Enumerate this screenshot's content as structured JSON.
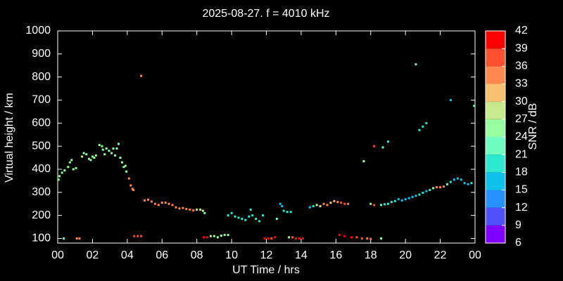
{
  "chart_data": {
    "type": "scatter",
    "title": "2025-08-27. f = 4010 kHz",
    "x_label": "UT Time / hrs",
    "y_label": "Virtual height / km",
    "xlim": [
      0,
      24
    ],
    "xticks": [
      {
        "value": 0,
        "label": "00"
      },
      {
        "value": 2,
        "label": "02"
      },
      {
        "value": 4,
        "label": "04"
      },
      {
        "value": 6,
        "label": "06"
      },
      {
        "value": 8,
        "label": "08"
      },
      10,
      12,
      14,
      16,
      18,
      20,
      22,
      {
        "value": 24,
        "label": "00"
      }
    ],
    "ylim": [
      80,
      1000
    ],
    "yticks": [
      100,
      200,
      300,
      400,
      500,
      600,
      700,
      800,
      900,
      1000
    ],
    "x": [
      0.05,
      0.1,
      0.25,
      0.4,
      0.6,
      0.7,
      0.8,
      0.9,
      1.05,
      0.35,
      1.1,
      1.25,
      1.4,
      1.5,
      1.65,
      1.8,
      1.9,
      2.0,
      2.1,
      2.2,
      2.4,
      2.55,
      2.6,
      2.7,
      2.8,
      2.95,
      3.1,
      3.2,
      3.3,
      3.4,
      3.5,
      3.6,
      3.7,
      3.8,
      3.9,
      3.95,
      4.1,
      4.2,
      4.3,
      4.35,
      4.4,
      4.6,
      4.8,
      4.8,
      5.0,
      5.2,
      5.4,
      5.6,
      5.8,
      6.0,
      6.2,
      6.4,
      6.6,
      6.8,
      7.0,
      7.2,
      7.4,
      7.6,
      7.8,
      8.0,
      8.2,
      8.35,
      8.45,
      8.4,
      8.6,
      8.8,
      9.0,
      9.2,
      9.4,
      9.6,
      9.8,
      9.8,
      10.0,
      10.2,
      10.4,
      10.6,
      10.8,
      11.0,
      11.1,
      11.2,
      11.4,
      11.6,
      11.8,
      11.9,
      12.1,
      12.3,
      12.5,
      12.6,
      12.8,
      12.9,
      13.0,
      13.2,
      13.4,
      13.3,
      13.5,
      13.7,
      13.9,
      14.1,
      14.5,
      14.7,
      14.9,
      15.1,
      15.3,
      15.5,
      15.7,
      15.9,
      16.1,
      16.3,
      16.5,
      16.7,
      16.2,
      16.5,
      16.9,
      17.2,
      17.5,
      17.8,
      18.0,
      18.6,
      17.6,
      18.2,
      18.7,
      19.0,
      18.0,
      18.2,
      18.6,
      18.8,
      19.0,
      19.2,
      19.4,
      19.6,
      19.8,
      20.0,
      20.2,
      20.4,
      20.6,
      20.8,
      21.0,
      21.2,
      21.4,
      21.6,
      21.8,
      22.0,
      22.2,
      22.4,
      22.6,
      22.8,
      23.0,
      23.2,
      23.4,
      23.6,
      23.8,
      20.6,
      20.8,
      21.0,
      21.2,
      22.6,
      23.95
    ],
    "values": [
      355,
      370,
      385,
      395,
      410,
      430,
      440,
      400,
      405,
      100,
      100,
      100,
      455,
      470,
      465,
      445,
      440,
      455,
      450,
      460,
      505,
      500,
      485,
      465,
      490,
      480,
      470,
      490,
      460,
      490,
      510,
      450,
      430,
      410,
      415,
      390,
      360,
      330,
      315,
      310,
      110,
      110,
      110,
      805,
      265,
      268,
      260,
      250,
      245,
      255,
      255,
      250,
      245,
      235,
      230,
      232,
      228,
      225,
      222,
      225,
      225,
      220,
      210,
      105,
      105,
      110,
      110,
      105,
      112,
      115,
      115,
      200,
      210,
      195,
      190,
      185,
      180,
      195,
      225,
      200,
      185,
      175,
      200,
      100,
      100,
      100,
      105,
      185,
      250,
      240,
      220,
      215,
      215,
      105,
      105,
      100,
      100,
      100,
      235,
      240,
      245,
      240,
      250,
      245,
      255,
      262,
      258,
      255,
      250,
      250,
      115,
      110,
      105,
      105,
      100,
      100,
      98,
      100,
      435,
      500,
      495,
      520,
      250,
      245,
      245,
      248,
      250,
      258,
      262,
      270,
      265,
      270,
      275,
      280,
      285,
      290,
      298,
      305,
      310,
      318,
      322,
      322,
      325,
      335,
      345,
      355,
      360,
      355,
      340,
      335,
      340,
      855,
      570,
      585,
      600,
      700,
      675
    ],
    "snr": [
      24,
      24,
      24,
      24,
      24,
      24,
      24,
      24,
      24,
      21,
      33,
      33,
      27,
      24,
      24,
      24,
      24,
      24,
      24,
      24,
      24,
      24,
      24,
      24,
      24,
      24,
      24,
      24,
      24,
      24,
      21,
      24,
      24,
      24,
      24,
      24,
      33,
      33,
      33,
      33,
      36,
      36,
      36,
      33,
      33,
      33,
      33,
      33,
      33,
      33,
      33,
      33,
      33,
      33,
      33,
      33,
      33,
      33,
      33,
      27,
      27,
      27,
      21,
      39,
      39,
      27,
      24,
      24,
      24,
      24,
      24,
      18,
      18,
      18,
      18,
      18,
      18,
      18,
      18,
      18,
      18,
      18,
      18,
      39,
      39,
      36,
      39,
      21,
      15,
      15,
      18,
      18,
      18,
      24,
      36,
      39,
      39,
      39,
      15,
      18,
      27,
      27,
      33,
      33,
      30,
      30,
      33,
      36,
      36,
      33,
      39,
      39,
      39,
      36,
      36,
      33,
      33,
      24,
      24,
      36,
      21,
      18,
      27,
      36,
      21,
      18,
      18,
      18,
      18,
      15,
      15,
      15,
      15,
      15,
      15,
      18,
      18,
      15,
      18,
      24,
      33,
      33,
      33,
      21,
      18,
      15,
      15,
      15,
      15,
      15,
      18,
      21,
      18,
      18,
      18,
      15,
      21
    ],
    "colorbar": {
      "label": "SNR / dB",
      "lim": [
        6,
        42
      ],
      "ticks": [
        6,
        9,
        12,
        15,
        18,
        21,
        24,
        27,
        30,
        33,
        36,
        39,
        42
      ],
      "colors": [
        "#8000ff",
        "#5050ff",
        "#2890ff",
        "#10c0e8",
        "#30e8d0",
        "#70ffc0",
        "#98ffa0",
        "#c8e88c",
        "#f5c070",
        "#ff8850",
        "#ff5030",
        "#ff0000"
      ]
    }
  }
}
